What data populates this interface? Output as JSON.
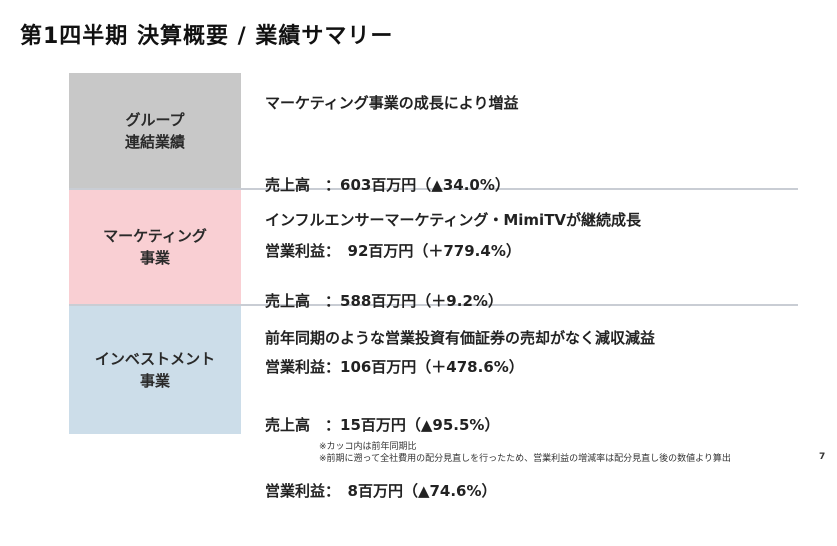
{
  "title": "第1四半期 決算概要 / 業績サマリー",
  "rows": [
    {
      "segment": [
        "グループ",
        "連結業績"
      ],
      "headline": "マーケティング事業の成長により増益",
      "metrics": [
        "売上高　：603百万円（▲34.0%）",
        "営業利益：　92百万円（＋779.4%）"
      ]
    },
    {
      "segment": [
        "マーケティング",
        "事業"
      ],
      "headline": "インフルエンサーマーケティング・MimiTVが継続成長",
      "metrics": [
        "売上高　：588百万円（＋9.2%）",
        "営業利益：106百万円（＋478.6%）"
      ]
    },
    {
      "segment": [
        "インベストメント",
        "事業"
      ],
      "headline": "前年同期のような営業投資有価証券の売却がなく減収減益",
      "metrics": [
        "売上高　：15百万円（▲95.5%）",
        "営業利益：　8百万円（▲74.6%）"
      ]
    }
  ],
  "footnotes": [
    "※カッコ内は前年同期比",
    "※前期に遡って全社費用の配分見直しを行ったため、営業利益の増減率は配分見直し後の数値より算出"
  ],
  "page_number": "7",
  "colors": {
    "segment_group": "#c8c8c8",
    "segment_marketing": "#f9cfd3",
    "segment_investment": "#ccdde9",
    "row_divider": "#c9cdd4"
  }
}
